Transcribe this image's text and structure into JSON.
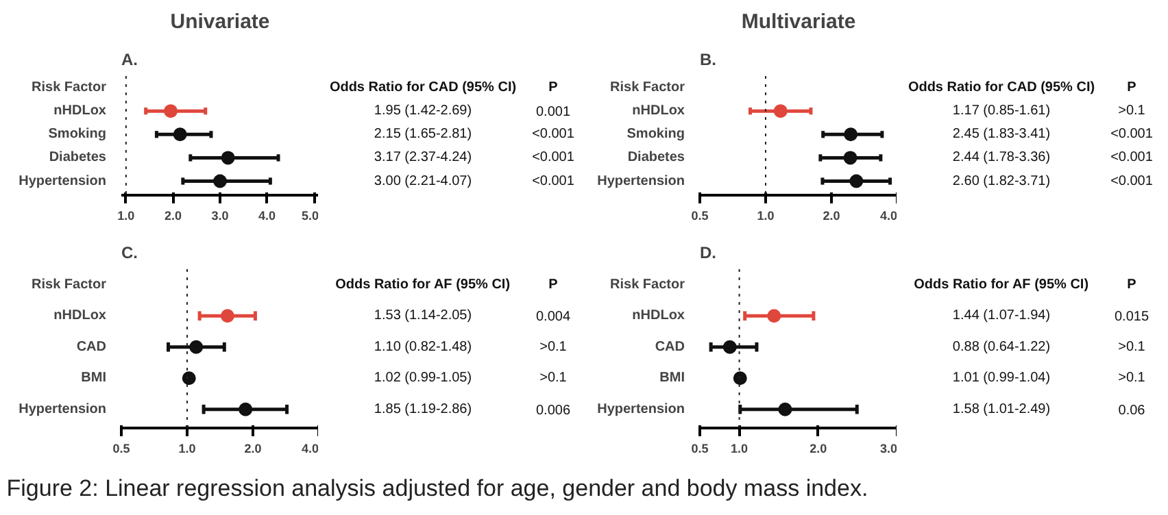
{
  "chart_data": [
    {
      "type": "scatter",
      "title": "Univariate",
      "subtitle": "A.",
      "ylabel": "Risk Factor",
      "xlabel": "Odds Ratio for CAD (95% CI)",
      "categories": [
        "nHDLox",
        "Smoking",
        "Diabetes",
        "Hypertension"
      ],
      "values": [
        1.95,
        2.15,
        3.17,
        3.0
      ],
      "errors": [
        [
          1.42,
          2.69
        ],
        [
          1.65,
          2.81
        ],
        [
          2.37,
          4.24
        ],
        [
          2.21,
          4.07
        ]
      ],
      "colors": [
        "#e0473c",
        "#111111",
        "#111111",
        "#111111"
      ],
      "value_labels": [
        "1.95 (1.42-2.69)",
        "2.15 (1.65-2.81)",
        "3.17 (2.37-4.24)",
        "3.00 (2.21-4.07)"
      ],
      "annotations": [
        "P",
        "0.001",
        "<0.001",
        "<0.001",
        "<0.001"
      ],
      "xlim": [
        0.9,
        5.1
      ],
      "xticks": [
        {
          "value": 1,
          "label": "1.0"
        },
        {
          "value": 2,
          "label": "2.0"
        },
        {
          "value": 3,
          "label": "3.0"
        },
        {
          "value": 4,
          "label": "4.0"
        },
        {
          "value": 5,
          "label": "5.0"
        }
      ],
      "ref_lines": [
        {
          "axis": "x",
          "value": 1,
          "line_style": "dotted"
        }
      ],
      "marker": "circle",
      "orientation": "horizontal"
    },
    {
      "type": "scatter",
      "title": "Multivariate",
      "subtitle": "B.",
      "ylabel": "Risk Factor",
      "xlabel": "Odds Ratio for CAD (95% CI)",
      "categories": [
        "nHDLox",
        "Smoking",
        "Diabetes",
        "Hypertension"
      ],
      "values": [
        1.17,
        2.45,
        2.44,
        2.6
      ],
      "errors": [
        [
          0.85,
          1.61
        ],
        [
          1.83,
          3.41
        ],
        [
          1.78,
          3.36
        ],
        [
          1.82,
          3.71
        ]
      ],
      "colors": [
        "#e0473c",
        "#111111",
        "#111111",
        "#111111"
      ],
      "value_labels": [
        "1.17 (0.85-1.61)",
        "2.45 (1.83-3.41)",
        "2.44 (1.78-3.36)",
        "2.60 (1.82-3.71)"
      ],
      "annotations": [
        "P",
        ">0.1",
        "<0.001",
        "<0.001",
        "<0.001"
      ],
      "xlim": [
        0.5,
        4
      ],
      "xticks": [
        {
          "value": 0.5,
          "label": "0.5"
        },
        {
          "value": 1,
          "label": "1.0"
        },
        {
          "value": 2,
          "label": "2.0"
        },
        {
          "value": 4,
          "label": "4.0"
        }
      ],
      "log": "x",
      "ref_lines": [
        {
          "axis": "x",
          "value": 1,
          "line_style": "dotted"
        }
      ],
      "marker": "circle",
      "orientation": "horizontal"
    },
    {
      "type": "scatter",
      "subtitle": "C.",
      "ylabel": "Risk Factor",
      "xlabel": "Odds Ratio for AF (95% CI)",
      "categories": [
        "nHDLox",
        "CAD",
        "BMI",
        "Hypertension"
      ],
      "values": [
        1.53,
        1.1,
        1.02,
        1.85
      ],
      "errors": [
        [
          1.14,
          2.05
        ],
        [
          0.82,
          1.48
        ],
        [
          0.99,
          1.05
        ],
        [
          1.19,
          2.86
        ]
      ],
      "colors": [
        "#e0473c",
        "#111111",
        "#111111",
        "#111111"
      ],
      "value_labels": [
        "1.53 (1.14-2.05)",
        "1.10 (0.82-1.48)",
        "1.02 (0.99-1.05)",
        "1.85 (1.19-2.86)"
      ],
      "annotations": [
        "P",
        "0.004",
        ">0.1",
        ">0.1",
        "0.006"
      ],
      "xlim": [
        0.5,
        4
      ],
      "xticks": [
        {
          "value": 0.5,
          "label": "0.5"
        },
        {
          "value": 1,
          "label": "1.0"
        },
        {
          "value": 2,
          "label": "2.0"
        },
        {
          "value": 4,
          "label": "4.0"
        }
      ],
      "log": "x",
      "ref_lines": [
        {
          "axis": "x",
          "value": 1,
          "line_style": "dotted"
        }
      ],
      "marker": "circle",
      "orientation": "horizontal"
    },
    {
      "type": "scatter",
      "subtitle": "D.",
      "ylabel": "Risk Factor",
      "xlabel": "Odds Ratio for AF (95% CI)",
      "categories": [
        "nHDLox",
        "CAD",
        "BMI",
        "Hypertension"
      ],
      "values": [
        1.44,
        0.88,
        1.01,
        1.58
      ],
      "errors": [
        [
          1.07,
          1.94
        ],
        [
          0.64,
          1.22
        ],
        [
          0.99,
          1.04
        ],
        [
          1.01,
          2.49
        ]
      ],
      "colors": [
        "#e0473c",
        "#111111",
        "#111111",
        "#111111"
      ],
      "value_labels": [
        "1.44 (1.07-1.94)",
        "0.88 (0.64-1.22)",
        "1.01 (0.99-1.04)",
        "1.58 (1.01-2.49)"
      ],
      "annotations": [
        "P",
        "0.015",
        ">0.1",
        ">0.1",
        "0.06",
        "Figure 2: Linear regression analysis adjusted for age, gender and body mass index."
      ],
      "xlim": [
        0.5,
        3
      ],
      "xticks": [
        {
          "value": 0.5,
          "label": "0.5"
        },
        {
          "value": 1,
          "label": "1.0"
        },
        {
          "value": 2,
          "label": "2.0"
        },
        {
          "value": 3,
          "label": "3.0"
        }
      ],
      "ref_lines": [
        {
          "axis": "x",
          "value": 1,
          "line_style": "dotted"
        }
      ],
      "marker": "circle",
      "orientation": "horizontal"
    }
  ]
}
